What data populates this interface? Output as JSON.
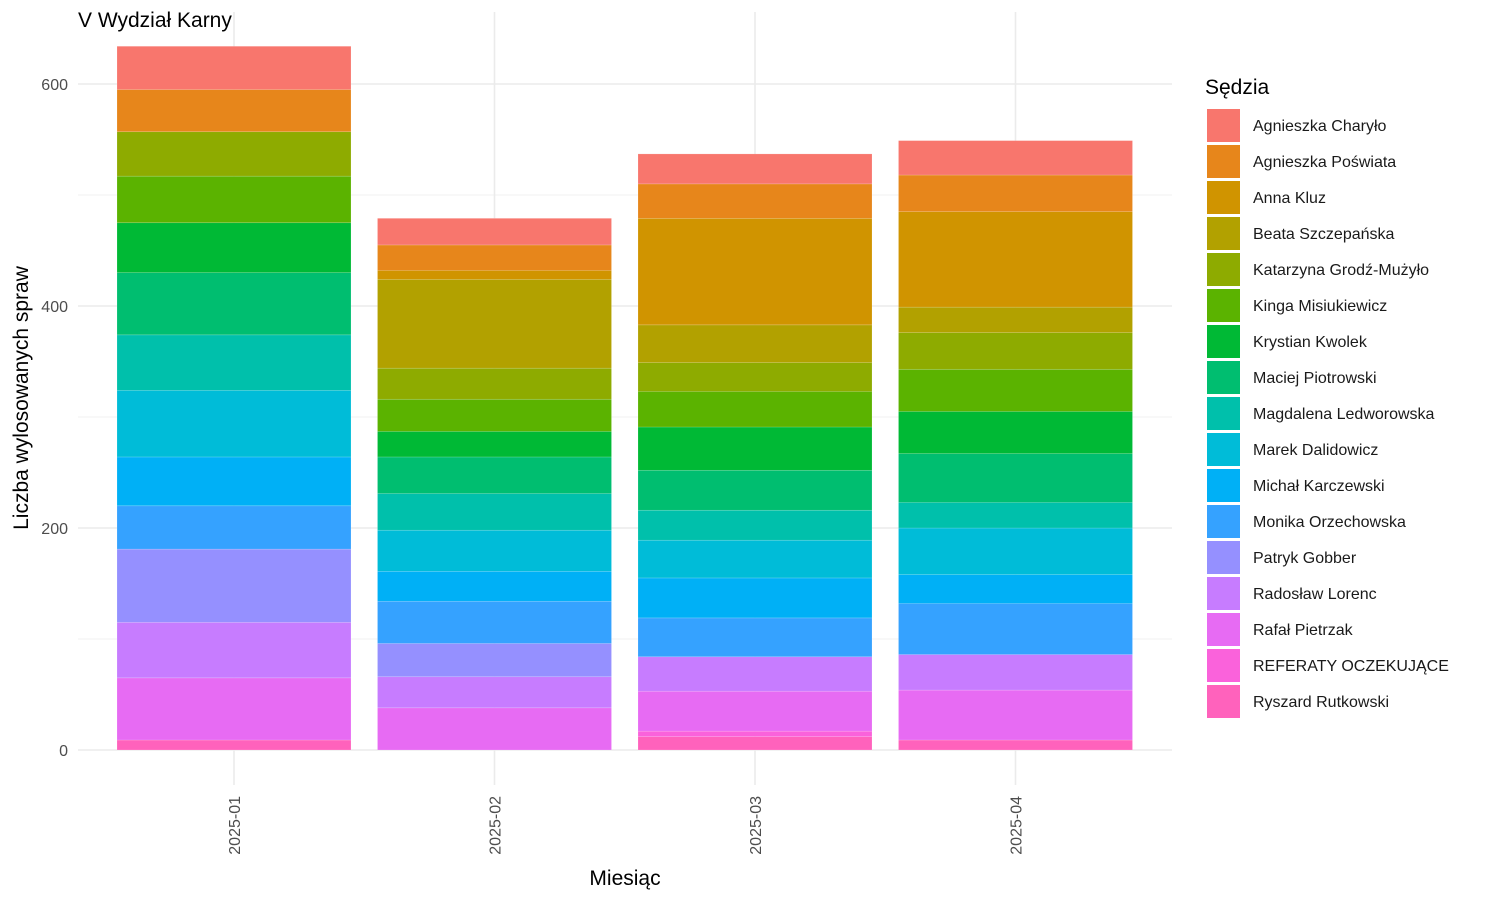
{
  "chart_data": {
    "type": "bar",
    "stacked": true,
    "title": "V Wydział Karny",
    "xlabel": "Miesiąc",
    "ylabel": "Liczba wylosowanych spraw",
    "ylim": [
      0,
      640
    ],
    "yticks": [
      0,
      200,
      400,
      600
    ],
    "grid": true,
    "legend_title": "Sędzia",
    "legend_position": "right",
    "categories": [
      "2025-01",
      "2025-02",
      "2025-03",
      "2025-04"
    ],
    "series": [
      {
        "name": "Agnieszka Charyło",
        "color": "#F8766D",
        "values": [
          39,
          24,
          27,
          31
        ]
      },
      {
        "name": "Agnieszka Poświata",
        "color": "#E7861B",
        "values": [
          38,
          23,
          31,
          33
        ]
      },
      {
        "name": "Anna Kluz",
        "color": "#D09400",
        "values": [
          0,
          8,
          96,
          86
        ]
      },
      {
        "name": "Beata Szczepańska",
        "color": "#B2A100",
        "values": [
          0,
          80,
          34,
          23
        ]
      },
      {
        "name": "Katarzyna Grodź-Mużyło",
        "color": "#8EAB00",
        "values": [
          40,
          28,
          26,
          33
        ]
      },
      {
        "name": "Kinga Misiukiewicz",
        "color": "#5BB300",
        "values": [
          42,
          29,
          32,
          38
        ]
      },
      {
        "name": "Krystian Kwolek",
        "color": "#00B935",
        "values": [
          45,
          23,
          39,
          38
        ]
      },
      {
        "name": "Maciej Piotrowski",
        "color": "#00BE70",
        "values": [
          56,
          33,
          36,
          44
        ]
      },
      {
        "name": "Magdalena Ledworowska",
        "color": "#00C0AB",
        "values": [
          50,
          33,
          27,
          23
        ]
      },
      {
        "name": "Marek Dalidowicz",
        "color": "#00BCD8",
        "values": [
          60,
          37,
          34,
          42
        ]
      },
      {
        "name": "Michał Karczewski",
        "color": "#00B0F6",
        "values": [
          44,
          27,
          36,
          26
        ]
      },
      {
        "name": "Monika Orzechowska",
        "color": "#35A2FF",
        "values": [
          39,
          38,
          35,
          46
        ]
      },
      {
        "name": "Patryk Gobber",
        "color": "#9590FF",
        "values": [
          66,
          30,
          0,
          0
        ]
      },
      {
        "name": "Radosław Lorenc",
        "color": "#C77CFF",
        "values": [
          50,
          28,
          31,
          32
        ]
      },
      {
        "name": "Rafał Pietrzak",
        "color": "#E76BF3",
        "values": [
          56,
          38,
          36,
          45
        ]
      },
      {
        "name": "REFERATY OCZEKUJĄCE",
        "color": "#FA62DB",
        "values": [
          0,
          0,
          5,
          0
        ]
      },
      {
        "name": "Ryszard Rutkowski",
        "color": "#FF62BC",
        "values": [
          9,
          0,
          12,
          9
        ]
      }
    ]
  }
}
